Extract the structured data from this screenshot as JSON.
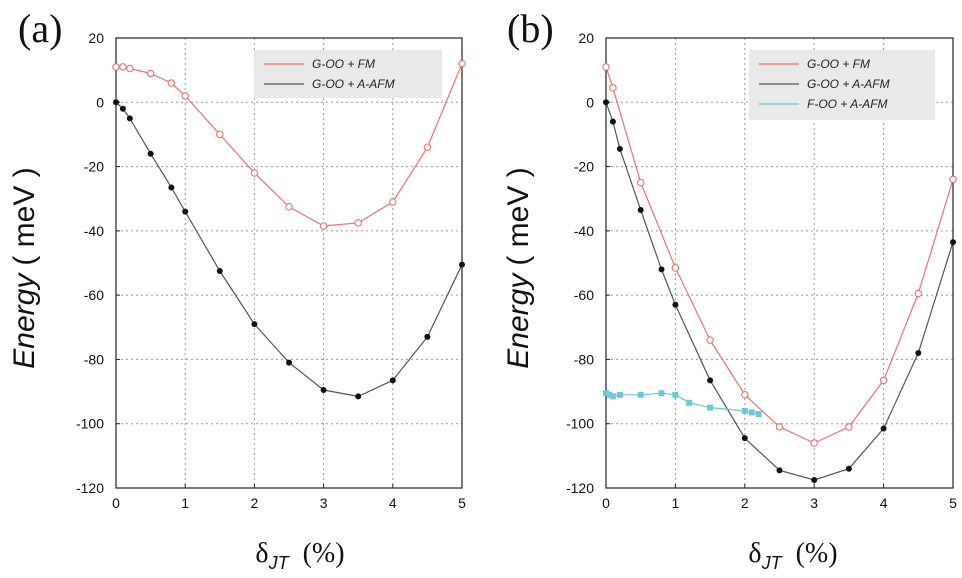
{
  "chart_data": [
    {
      "type": "line",
      "panel_label": "(a)",
      "ylabel_prefix": "Energy",
      "ylabel_suffix": "( meV )",
      "xlabel_base": "δ",
      "xlabel_sub": "JT",
      "xlabel_unit": "(%)",
      "xlim": [
        0,
        5
      ],
      "ylim": [
        -120,
        20
      ],
      "xticks": [
        0,
        1,
        2,
        3,
        4,
        5
      ],
      "yticks": [
        20,
        0,
        -20,
        -40,
        -60,
        -80,
        -100,
        -120
      ],
      "grid": true,
      "legend_position": "top-right",
      "series": [
        {
          "name": "G-OO + FM",
          "color": "#f07070",
          "marker": "open-circle",
          "x": [
            0,
            0.1,
            0.2,
            0.5,
            0.8,
            1,
            1.5,
            2,
            2.5,
            3,
            3.5,
            4,
            4.5,
            5
          ],
          "y": [
            11,
            11,
            10.5,
            9,
            6,
            2,
            -10,
            -22,
            -32.5,
            -38.5,
            -37.5,
            -31,
            -14,
            12
          ]
        },
        {
          "name": "G-OO + A-AFM",
          "color": "#555555",
          "marker": "filled-circle",
          "x": [
            0,
            0.1,
            0.2,
            0.5,
            0.8,
            1,
            1.5,
            2,
            2.5,
            3,
            3.5,
            4,
            4.5,
            5
          ],
          "y": [
            0,
            -2,
            -5,
            -16,
            -26.5,
            -34,
            -52.5,
            -69,
            -81,
            -89.5,
            -91.5,
            -86.5,
            -73,
            -50.5
          ]
        }
      ]
    },
    {
      "type": "line",
      "panel_label": "(b)",
      "ylabel_prefix": "Energy",
      "ylabel_suffix": "( meV )",
      "xlabel_base": "δ",
      "xlabel_sub": "JT",
      "xlabel_unit": "(%)",
      "xlim": [
        0,
        5
      ],
      "ylim": [
        -120,
        20
      ],
      "xticks": [
        0,
        1,
        2,
        3,
        4,
        5
      ],
      "yticks": [
        20,
        0,
        -20,
        -40,
        -60,
        -80,
        -100,
        -120
      ],
      "grid": true,
      "legend_position": "top-right",
      "series": [
        {
          "name": "G-OO + FM",
          "color": "#f07070",
          "marker": "open-circle",
          "x": [
            0,
            0.1,
            0.5,
            1,
            1.5,
            2,
            2.5,
            3,
            3.5,
            4,
            4.5,
            5
          ],
          "y": [
            11,
            4.5,
            -25,
            -51.5,
            -74,
            -91,
            -101,
            -106,
            -101,
            -86.5,
            -59.5,
            -24
          ]
        },
        {
          "name": "G-OO + A-AFM",
          "color": "#555555",
          "marker": "filled-circle",
          "x": [
            0,
            0.1,
            0.2,
            0.5,
            0.8,
            1,
            1.5,
            2,
            2.5,
            3,
            3.5,
            4,
            4.5,
            5
          ],
          "y": [
            0,
            -6,
            -14.5,
            -33.5,
            -52,
            -63,
            -86.5,
            -104.5,
            -114.5,
            -117.5,
            -114,
            -101.5,
            -78,
            -43.5
          ]
        },
        {
          "name": "F-OO + A-AFM",
          "color": "#6cc8d4",
          "marker": "filled-square",
          "x": [
            0,
            0.05,
            0.1,
            0.2,
            0.5,
            0.8,
            1,
            1.2,
            1.5,
            2,
            2.1,
            2.2
          ],
          "y": [
            -90.5,
            -91,
            -91.5,
            -91,
            -91,
            -90.5,
            -91,
            -93.5,
            -95,
            -96,
            -96.5,
            -97
          ]
        }
      ]
    }
  ]
}
